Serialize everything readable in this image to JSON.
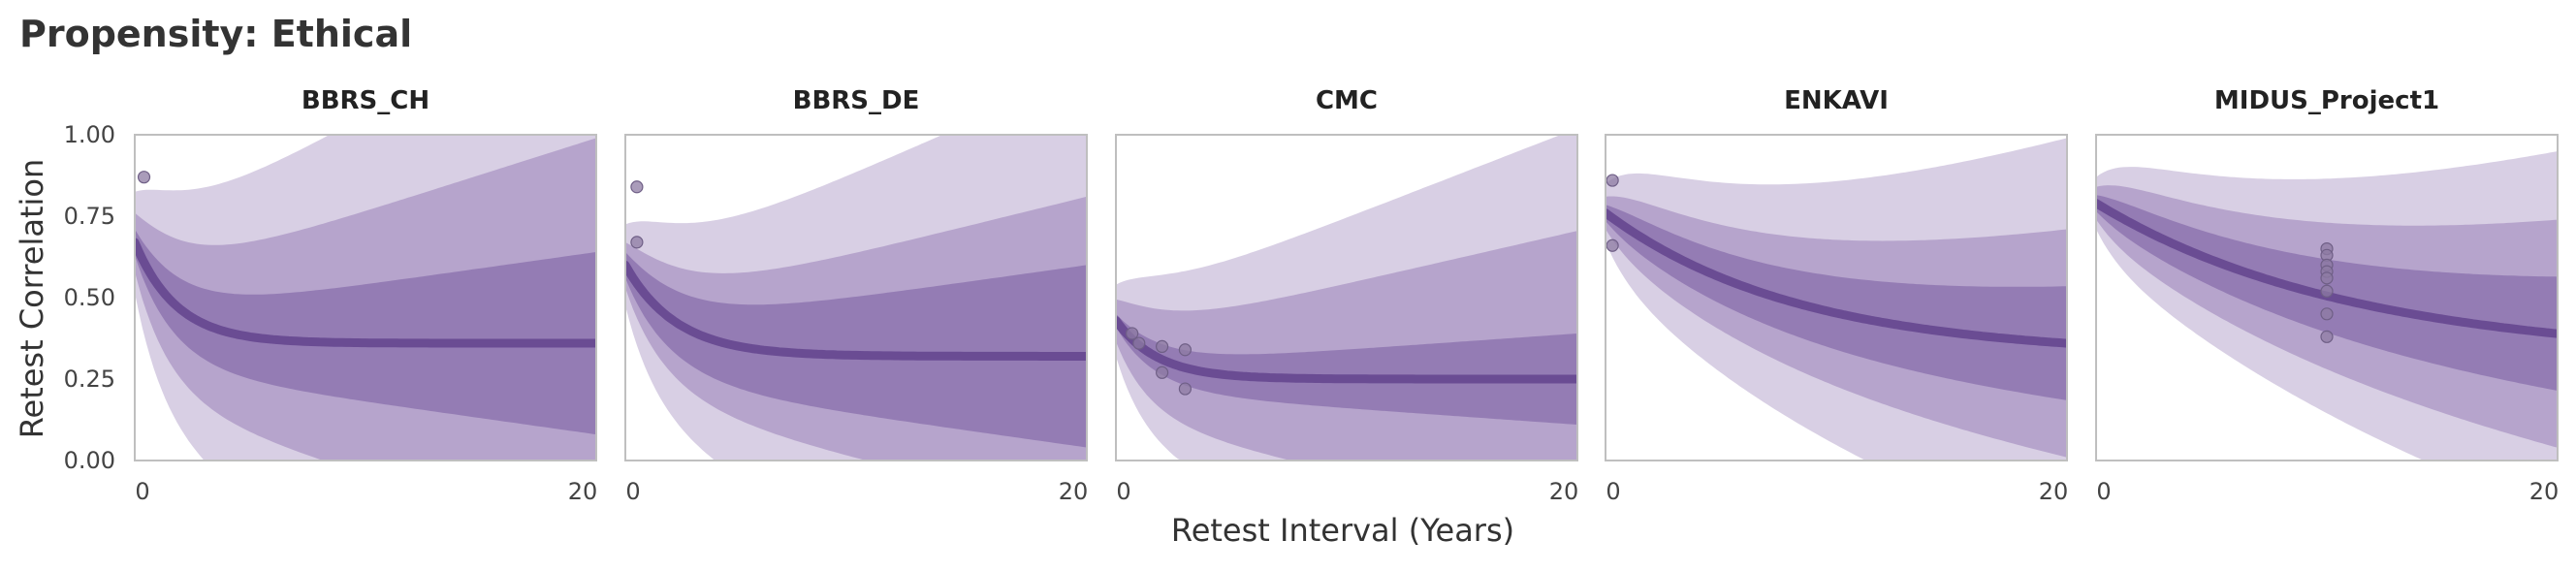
{
  "chart_data": {
    "type": "line",
    "title": "Propensity: Ethical",
    "xlabel": "Retest Interval (Years)",
    "ylabel": "Retest Correlation",
    "xlim": [
      0,
      20
    ],
    "ylim": [
      0,
      1
    ],
    "x_ticks": [
      "0",
      "20"
    ],
    "y_ticks": [
      "0.00",
      "0.25",
      "0.50",
      "0.75",
      "1.00"
    ],
    "grid": false,
    "colors": {
      "line": "#6a4c93",
      "band_outer": "#d8cfe4",
      "band_mid": "#b6a4cc",
      "band_inner": "#947cb4",
      "point": "#8d7ba3"
    },
    "panels": [
      {
        "name": "BBRS_CH",
        "curve": {
          "a": 0.31,
          "b": 0.36,
          "k": 0.55
        },
        "bands": {
          "inner": 0.08,
          "mid": 0.18,
          "outer": 0.31
        },
        "points": [
          [
            0.4,
            0.87
          ]
        ]
      },
      {
        "name": "BBRS_DE",
        "curve": {
          "a": 0.28,
          "b": 0.32,
          "k": 0.45
        },
        "bands": {
          "inner": 0.08,
          "mid": 0.14,
          "outer": 0.25
        },
        "points": [
          [
            0.5,
            0.84
          ],
          [
            0.5,
            0.67
          ]
        ]
      },
      {
        "name": "CMC",
        "curve": {
          "a": 0.18,
          "b": 0.25,
          "k": 0.55
        },
        "bands": {
          "inner": 0.04,
          "mid": 0.13,
          "outer": 0.22
        },
        "points": [
          [
            0.7,
            0.39
          ],
          [
            1.0,
            0.36
          ],
          [
            2.0,
            0.35
          ],
          [
            3.0,
            0.34
          ],
          [
            2.0,
            0.27
          ],
          [
            3.0,
            0.22
          ]
        ]
      },
      {
        "name": "ENKAVI",
        "curve": {
          "a": 0.44,
          "b": 0.32,
          "k": 0.12
        },
        "bands": {
          "inner": 0.05,
          "mid": 0.1,
          "outer": 0.18
        },
        "points": [
          [
            0.3,
            0.86
          ],
          [
            0.3,
            0.66
          ]
        ]
      },
      {
        "name": "MIDUS_Project1",
        "curve": {
          "a": 0.48,
          "b": 0.31,
          "k": 0.09
        },
        "bands": {
          "inner": 0.05,
          "mid": 0.1,
          "outer": 0.16
        },
        "points": [
          [
            10,
            0.65
          ],
          [
            10,
            0.63
          ],
          [
            10,
            0.6
          ],
          [
            10,
            0.58
          ],
          [
            10,
            0.56
          ],
          [
            10,
            0.52
          ],
          [
            10,
            0.45
          ],
          [
            10,
            0.38
          ]
        ]
      }
    ]
  }
}
